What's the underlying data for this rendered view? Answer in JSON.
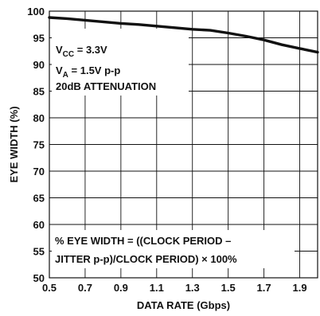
{
  "chart_data": {
    "type": "line",
    "xlabel": "DATA RATE (Gbps)",
    "ylabel": "EYE WIDTH (%)",
    "xlim": [
      0.5,
      2.0
    ],
    "ylim": [
      50,
      100
    ],
    "x_ticks": [
      0.5,
      0.7,
      0.9,
      1.1,
      1.3,
      1.5,
      1.7,
      1.9
    ],
    "x_tick_labels": [
      "0.5",
      "0.7",
      "0.9",
      "1.1",
      "1.3",
      "1.5",
      "1.7",
      "1.9"
    ],
    "y_ticks": [
      50,
      55,
      60,
      65,
      70,
      75,
      80,
      85,
      90,
      95,
      100
    ],
    "y_tick_labels": [
      "50",
      "55",
      "60",
      "65",
      "70",
      "75",
      "80",
      "85",
      "90",
      "95",
      "100"
    ],
    "grid": true,
    "series": [
      {
        "x": [
          0.5,
          0.6,
          0.7,
          0.8,
          0.9,
          1.0,
          1.1,
          1.2,
          1.3,
          1.4,
          1.5,
          1.6,
          1.7,
          1.8,
          1.9,
          2.0
        ],
        "y": [
          98.8,
          98.6,
          98.3,
          98.0,
          97.7,
          97.5,
          97.2,
          96.9,
          96.6,
          96.4,
          95.9,
          95.3,
          94.6,
          93.7,
          93.0,
          92.3
        ]
      }
    ],
    "conditions": {
      "vcc_main": "V",
      "vcc_sub": "CC",
      "vcc_value": " = 3.3V",
      "va_main": "V",
      "va_sub": "A",
      "va_value": " = 1.5V p-p",
      "attenuation": "20dB ATTENUATION"
    },
    "formula": {
      "line1": "% EYE WIDTH = ((CLOCK PERIOD –",
      "line2": "JITTER p-p)/CLOCK PERIOD) × 100%"
    },
    "colors": {
      "line": "#111111",
      "grid": "#111111",
      "background": "#ffffff"
    }
  }
}
